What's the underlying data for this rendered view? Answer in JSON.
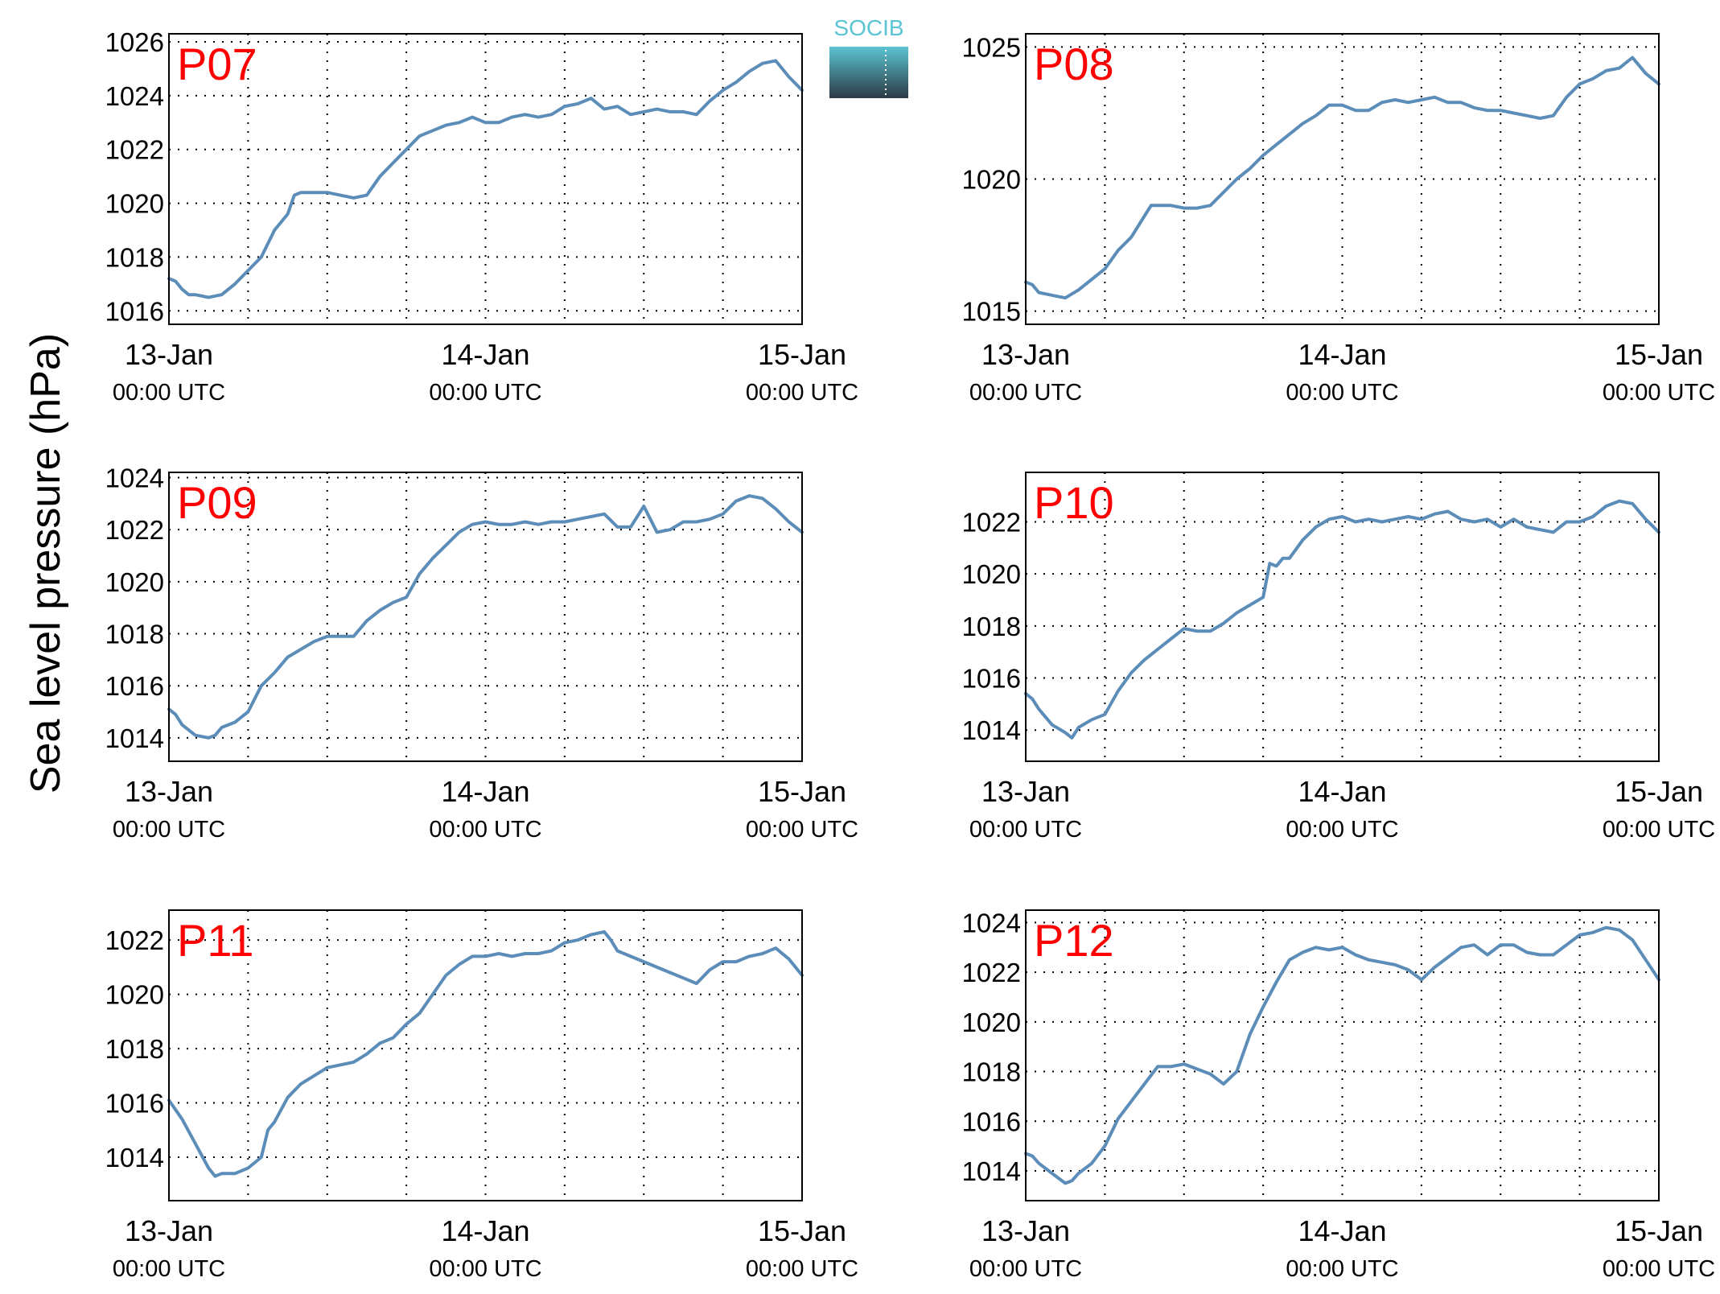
{
  "figure": {
    "ylabel": "Sea level pressure (hPa)",
    "logo_text": "SOCIB",
    "colors": {
      "line": "#5b8db8",
      "panel_label": "#ff0000",
      "logo_top": "#5bc4d3",
      "logo_bottom": "#2c3a44"
    }
  },
  "chart_data": [
    {
      "type": "line",
      "name": "P07",
      "label": "P07",
      "xlim": [
        0,
        48
      ],
      "ylim": [
        1015.5,
        1026.3
      ],
      "yticks": [
        1016,
        1018,
        1020,
        1022,
        1024,
        1026
      ],
      "xticks": [
        0,
        24,
        48
      ],
      "xtick_labels": [
        "13-Jan",
        "14-Jan",
        "15-Jan"
      ],
      "xtick_sublabels": [
        "00:00 UTC",
        "00:00 UTC",
        "00:00 UTC"
      ],
      "grid": true,
      "x": [
        0,
        0.5,
        1,
        1.5,
        2,
        3,
        4,
        5,
        6,
        7,
        8,
        9,
        9.5,
        10,
        11,
        12,
        13,
        14,
        15,
        16,
        17,
        18,
        19,
        20,
        21,
        22,
        23,
        24,
        25,
        26,
        27,
        28,
        29,
        30,
        31,
        32,
        33,
        34,
        35,
        36,
        37,
        38,
        39,
        40,
        41,
        42,
        43,
        44,
        45,
        46,
        47,
        48
      ],
      "y": [
        1017.2,
        1017.1,
        1016.8,
        1016.6,
        1016.6,
        1016.5,
        1016.6,
        1017.0,
        1017.5,
        1018.0,
        1019.0,
        1019.6,
        1020.3,
        1020.4,
        1020.4,
        1020.4,
        1020.3,
        1020.2,
        1020.3,
        1021.0,
        1021.5,
        1022.0,
        1022.5,
        1022.7,
        1022.9,
        1023.0,
        1023.2,
        1023.0,
        1023.0,
        1023.2,
        1023.3,
        1023.2,
        1023.3,
        1023.6,
        1023.7,
        1023.9,
        1023.5,
        1023.6,
        1023.3,
        1023.4,
        1023.5,
        1023.4,
        1023.4,
        1023.3,
        1023.8,
        1024.2,
        1024.5,
        1024.9,
        1025.2,
        1025.3,
        1024.7,
        1024.2
      ]
    },
    {
      "type": "line",
      "name": "P08",
      "label": "P08",
      "xlim": [
        0,
        48
      ],
      "ylim": [
        1014.5,
        1025.5
      ],
      "yticks": [
        1015,
        1020,
        1025
      ],
      "xticks": [
        0,
        24,
        48
      ],
      "xtick_labels": [
        "13-Jan",
        "14-Jan",
        "15-Jan"
      ],
      "xtick_sublabels": [
        "00:00 UTC",
        "00:00 UTC",
        "00:00 UTC"
      ],
      "grid": true,
      "x": [
        0,
        0.5,
        1,
        2,
        3,
        4,
        5,
        6,
        7,
        8,
        9,
        9.5,
        10,
        11,
        12,
        13,
        14,
        15,
        16,
        17,
        18,
        19,
        20,
        21,
        22,
        23,
        24,
        25,
        26,
        27,
        28,
        29,
        30,
        31,
        32,
        33,
        34,
        35,
        36,
        37,
        38,
        39,
        40,
        41,
        42,
        43,
        44,
        45,
        46,
        47,
        48
      ],
      "y": [
        1016.1,
        1016.0,
        1015.7,
        1015.6,
        1015.5,
        1015.8,
        1016.2,
        1016.6,
        1017.3,
        1017.8,
        1018.6,
        1019.0,
        1019.0,
        1019.0,
        1018.9,
        1018.9,
        1019.0,
        1019.5,
        1020.0,
        1020.4,
        1020.9,
        1021.3,
        1021.7,
        1022.1,
        1022.4,
        1022.8,
        1022.8,
        1022.6,
        1022.6,
        1022.9,
        1023.0,
        1022.9,
        1023.0,
        1023.1,
        1022.9,
        1022.9,
        1022.7,
        1022.6,
        1022.6,
        1022.5,
        1022.4,
        1022.3,
        1022.4,
        1023.1,
        1023.6,
        1023.8,
        1024.1,
        1024.2,
        1024.6,
        1024.0,
        1023.6
      ]
    },
    {
      "type": "line",
      "name": "P09",
      "label": "P09",
      "xlim": [
        0,
        48
      ],
      "ylim": [
        1013.1,
        1024.2
      ],
      "yticks": [
        1014,
        1016,
        1018,
        1020,
        1022,
        1024
      ],
      "xticks": [
        0,
        24,
        48
      ],
      "xtick_labels": [
        "13-Jan",
        "14-Jan",
        "15-Jan"
      ],
      "xtick_sublabels": [
        "00:00 UTC",
        "00:00 UTC",
        "00:00 UTC"
      ],
      "grid": true,
      "x": [
        0,
        0.5,
        1,
        2,
        3,
        3.5,
        4,
        5,
        6,
        7,
        8,
        9,
        10,
        11,
        12,
        13,
        14,
        15,
        16,
        17,
        18,
        19,
        19.5,
        20,
        21,
        22,
        23,
        24,
        25,
        26,
        27,
        28,
        29,
        30,
        31,
        32,
        33,
        34,
        35,
        36,
        37,
        38,
        39,
        40,
        41,
        42,
        43,
        44,
        45,
        46,
        47,
        48
      ],
      "y": [
        1015.1,
        1014.9,
        1014.5,
        1014.1,
        1014.0,
        1014.1,
        1014.4,
        1014.6,
        1015.0,
        1016.0,
        1016.5,
        1017.1,
        1017.4,
        1017.7,
        1017.9,
        1017.9,
        1017.9,
        1018.5,
        1018.9,
        1019.2,
        1019.4,
        1020.3,
        1020.6,
        1020.9,
        1021.4,
        1021.9,
        1022.2,
        1022.3,
        1022.2,
        1022.2,
        1022.3,
        1022.2,
        1022.3,
        1022.3,
        1022.4,
        1022.5,
        1022.6,
        1022.1,
        1022.1,
        1022.9,
        1021.9,
        1022.0,
        1022.3,
        1022.3,
        1022.4,
        1022.6,
        1023.1,
        1023.3,
        1023.2,
        1022.8,
        1022.3,
        1021.9
      ]
    },
    {
      "type": "line",
      "name": "P10",
      "label": "P10",
      "xlim": [
        0,
        48
      ],
      "ylim": [
        1012.8,
        1023.9
      ],
      "yticks": [
        1014,
        1016,
        1018,
        1020,
        1022
      ],
      "xticks": [
        0,
        24,
        48
      ],
      "xtick_labels": [
        "13-Jan",
        "14-Jan",
        "15-Jan"
      ],
      "xtick_sublabels": [
        "00:00 UTC",
        "00:00 UTC",
        "00:00 UTC"
      ],
      "grid": true,
      "x": [
        0,
        0.5,
        1,
        2,
        3,
        3.5,
        4,
        5,
        6,
        7,
        8,
        9,
        10,
        11,
        12,
        13,
        14,
        15,
        16,
        17,
        18,
        18.5,
        19,
        19.5,
        20,
        21,
        22,
        23,
        24,
        25,
        26,
        27,
        28,
        29,
        30,
        31,
        32,
        33,
        34,
        35,
        36,
        37,
        38,
        39,
        40,
        41,
        42,
        43,
        44,
        45,
        46,
        47,
        48
      ],
      "y": [
        1015.4,
        1015.2,
        1014.8,
        1014.2,
        1013.9,
        1013.7,
        1014.1,
        1014.4,
        1014.6,
        1015.5,
        1016.2,
        1016.7,
        1017.1,
        1017.5,
        1017.9,
        1017.8,
        1017.8,
        1018.1,
        1018.5,
        1018.8,
        1019.1,
        1020.4,
        1020.3,
        1020.6,
        1020.6,
        1021.3,
        1021.8,
        1022.1,
        1022.2,
        1022.0,
        1022.1,
        1022.0,
        1022.1,
        1022.2,
        1022.1,
        1022.3,
        1022.4,
        1022.1,
        1022.0,
        1022.1,
        1021.8,
        1022.1,
        1021.8,
        1021.7,
        1021.6,
        1022.0,
        1022.0,
        1022.2,
        1022.6,
        1022.8,
        1022.7,
        1022.1,
        1021.6
      ]
    },
    {
      "type": "line",
      "name": "P11",
      "label": "P11",
      "xlim": [
        0,
        48
      ],
      "ylim": [
        1012.4,
        1023.1
      ],
      "yticks": [
        1014,
        1016,
        1018,
        1020,
        1022
      ],
      "xticks": [
        0,
        24,
        48
      ],
      "xtick_labels": [
        "13-Jan",
        "14-Jan",
        "15-Jan"
      ],
      "xtick_sublabels": [
        "00:00 UTC",
        "00:00 UTC",
        "00:00 UTC"
      ],
      "grid": true,
      "x": [
        0,
        1,
        2,
        3,
        3.5,
        4,
        5,
        6,
        7,
        7.5,
        8,
        9,
        10,
        11,
        12,
        13,
        14,
        15,
        16,
        17,
        18,
        19,
        20,
        21,
        22,
        23,
        24,
        25,
        26,
        27,
        28,
        29,
        30,
        31,
        32,
        33,
        33.5,
        34,
        35,
        36,
        37,
        38,
        39,
        40,
        41,
        42,
        43,
        44,
        45,
        46,
        47,
        48
      ],
      "y": [
        1016.1,
        1015.4,
        1014.5,
        1013.6,
        1013.3,
        1013.4,
        1013.4,
        1013.6,
        1014.0,
        1015.0,
        1015.3,
        1016.2,
        1016.7,
        1017.0,
        1017.3,
        1017.4,
        1017.5,
        1017.8,
        1018.2,
        1018.4,
        1018.9,
        1019.3,
        1020.0,
        1020.7,
        1021.1,
        1021.4,
        1021.4,
        1021.5,
        1021.4,
        1021.5,
        1021.5,
        1021.6,
        1021.9,
        1022.0,
        1022.2,
        1022.3,
        1022.0,
        1021.6,
        1021.4,
        1021.2,
        1021.0,
        1020.8,
        1020.6,
        1020.4,
        1020.9,
        1021.2,
        1021.2,
        1021.4,
        1021.5,
        1021.7,
        1021.3,
        1020.7
      ]
    },
    {
      "type": "line",
      "name": "P12",
      "label": "P12",
      "xlim": [
        0,
        48
      ],
      "ylim": [
        1012.8,
        1024.5
      ],
      "yticks": [
        1014,
        1016,
        1018,
        1020,
        1022,
        1024
      ],
      "xticks": [
        0,
        24,
        48
      ],
      "xtick_labels": [
        "13-Jan",
        "14-Jan",
        "15-Jan"
      ],
      "xtick_sublabels": [
        "00:00 UTC",
        "00:00 UTC",
        "00:00 UTC"
      ],
      "grid": true,
      "x": [
        0,
        0.5,
        1,
        2,
        3,
        3.5,
        4,
        5,
        6,
        7,
        8,
        9,
        10,
        11,
        12,
        13,
        14,
        15,
        16,
        17,
        18,
        19,
        20,
        21,
        22,
        23,
        24,
        25,
        26,
        27,
        28,
        29,
        30,
        31,
        32,
        33,
        34,
        35,
        36,
        37,
        38,
        39,
        40,
        41,
        42,
        43,
        44,
        45,
        46,
        47,
        48
      ],
      "y": [
        1014.7,
        1014.6,
        1014.3,
        1013.9,
        1013.5,
        1013.6,
        1013.9,
        1014.3,
        1015.0,
        1016.1,
        1016.8,
        1017.5,
        1018.2,
        1018.2,
        1018.3,
        1018.1,
        1017.9,
        1017.5,
        1018.0,
        1019.5,
        1020.6,
        1021.6,
        1022.5,
        1022.8,
        1023.0,
        1022.9,
        1023.0,
        1022.7,
        1022.5,
        1022.4,
        1022.3,
        1022.1,
        1021.7,
        1022.2,
        1022.6,
        1023.0,
        1023.1,
        1022.7,
        1023.1,
        1023.1,
        1022.8,
        1022.7,
        1022.7,
        1023.1,
        1023.5,
        1023.6,
        1023.8,
        1023.7,
        1023.3,
        1022.5,
        1021.7
      ]
    }
  ]
}
